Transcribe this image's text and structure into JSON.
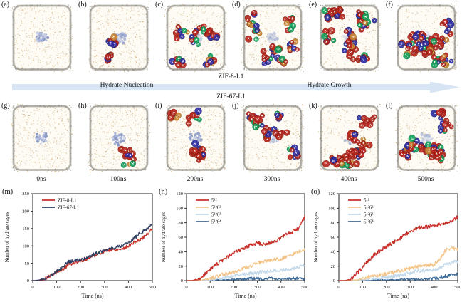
{
  "panels": [
    {
      "letter": "(a)",
      "cages": 0,
      "zif": 1.0
    },
    {
      "letter": "(b)",
      "cages": 16,
      "zif": 0.9
    },
    {
      "letter": "(c)",
      "cages": 48,
      "zif": 0.5
    },
    {
      "letter": "(d)",
      "cages": 58,
      "zif": 0.45
    },
    {
      "letter": "(e)",
      "cages": 78,
      "zif": 0.25
    },
    {
      "letter": "(f)",
      "cages": 88,
      "zif": 0.2
    },
    {
      "letter": "(g)",
      "cages": 0,
      "zif": 1.0
    },
    {
      "letter": "(h)",
      "cages": 18,
      "zif": 1.0
    },
    {
      "letter": "(i)",
      "cages": 36,
      "zif": 0.9
    },
    {
      "letter": "(j)",
      "cages": 46,
      "zif": 0.85
    },
    {
      "letter": "(k)",
      "cages": 62,
      "zif": 0.6
    },
    {
      "letter": "(l)",
      "cages": 78,
      "zif": 0.5
    }
  ],
  "labels": {
    "zif8_system": "ZIF-8-L1",
    "zif67_system": "ZIF-67-L1",
    "nucleation": "Hydrate Nucleation",
    "growth": "Hydrate Growth"
  },
  "time_labels": [
    "0ns",
    "100ns",
    "200ns",
    "300ns",
    "400ns",
    "500ns"
  ],
  "palette": {
    "box_fill": "#fdfbf4",
    "box_border": "#a6a49b",
    "speckle": "#c08a3e",
    "speckle_gray": "#a9a79f",
    "zif": "#98a6cb",
    "cage_red": "#b5281e",
    "cage_blue": "#3030a0",
    "cage_green": "#17a15d",
    "cage_orange": "#c98433",
    "arrow_band": "#d7e4f3"
  },
  "chart_data": [
    {
      "id": "m",
      "label": "(m)",
      "type": "line",
      "xlabel": "Time (ns)",
      "ylabel": "Number of hydrate cages",
      "xlim": [
        0,
        500
      ],
      "ylim": [
        0,
        250
      ],
      "xticks": [
        0,
        100,
        200,
        300,
        400,
        500
      ],
      "yticks": [
        0,
        50,
        100,
        150,
        200,
        250
      ],
      "legend_position": "top-left",
      "grid": false,
      "noise_amplitude": 5,
      "draw_order": "forward",
      "x": [
        0,
        25,
        50,
        75,
        100,
        125,
        150,
        175,
        200,
        225,
        250,
        275,
        300,
        325,
        350,
        375,
        400,
        425,
        450,
        475,
        500
      ],
      "series": [
        {
          "name": "ZIF-8-L1",
          "color": "#c8302a",
          "values": [
            0,
            1,
            5,
            14,
            25,
            33,
            45,
            52,
            57,
            62,
            72,
            78,
            85,
            88,
            90,
            92,
            100,
            110,
            118,
            132,
            148
          ]
        },
        {
          "name": "ZIF-67-L1",
          "color": "#2e3f63",
          "values": [
            0,
            1,
            6,
            16,
            27,
            40,
            54,
            57,
            60,
            66,
            74,
            82,
            88,
            92,
            96,
            102,
            108,
            122,
            138,
            148,
            162
          ]
        }
      ]
    },
    {
      "id": "n",
      "label": "(n)",
      "type": "line",
      "xlabel": "Time (ns)",
      "ylabel": "Number of hydrate cages",
      "xlim": [
        0,
        500
      ],
      "ylim": [
        0,
        120
      ],
      "xticks": [
        0,
        100,
        200,
        300,
        400,
        500
      ],
      "yticks": [
        0,
        20,
        40,
        60,
        80,
        100,
        120
      ],
      "legend_position": "top-left",
      "grid": false,
      "noise_amplitude": 2.6,
      "draw_order": "reverse",
      "x": [
        0,
        25,
        50,
        75,
        100,
        125,
        150,
        175,
        200,
        225,
        250,
        275,
        300,
        325,
        350,
        375,
        400,
        425,
        450,
        475,
        500
      ],
      "series": [
        {
          "name": "5¹²",
          "color": "#c8302a",
          "values": [
            0,
            0,
            2,
            8,
            15,
            22,
            28,
            33,
            38,
            42,
            46,
            50,
            52,
            50,
            52,
            55,
            58,
            65,
            68,
            72,
            88
          ]
        },
        {
          "name": "5¹²6²",
          "color": "#f3c488",
          "values": [
            0,
            0,
            0,
            1,
            3,
            5,
            8,
            10,
            12,
            15,
            18,
            20,
            24,
            26,
            28,
            29,
            30,
            33,
            36,
            40,
            43
          ]
        },
        {
          "name": "5¹²6³",
          "color": "#c3d9ea",
          "values": [
            0,
            0,
            0,
            0,
            1,
            2,
            3,
            5,
            6,
            8,
            9,
            10,
            11,
            12,
            13,
            14,
            15,
            16,
            17,
            19,
            21
          ]
        },
        {
          "name": "5¹²6⁴",
          "color": "#3c6a99",
          "values": [
            0,
            0,
            0,
            0,
            0,
            1,
            1,
            1,
            2,
            2,
            2,
            3,
            3,
            2,
            3,
            3,
            2,
            3,
            3,
            3,
            3
          ]
        }
      ]
    },
    {
      "id": "o",
      "label": "(o)",
      "type": "line",
      "xlabel": "Time (ns)",
      "ylabel": "Number of hydrate cages",
      "xlim": [
        0,
        500
      ],
      "ylim": [
        0,
        120
      ],
      "xticks": [
        0,
        100,
        200,
        300,
        400,
        500
      ],
      "yticks": [
        0,
        20,
        40,
        60,
        80,
        100,
        120
      ],
      "legend_position": "top-left",
      "grid": false,
      "noise_amplitude": 2.6,
      "draw_order": "reverse",
      "x": [
        0,
        25,
        50,
        75,
        100,
        125,
        150,
        175,
        200,
        225,
        250,
        275,
        300,
        325,
        350,
        375,
        400,
        425,
        450,
        475,
        500
      ],
      "series": [
        {
          "name": "5¹²",
          "color": "#c8302a",
          "values": [
            0,
            0,
            2,
            10,
            18,
            28,
            36,
            42,
            47,
            52,
            57,
            63,
            68,
            72,
            74,
            74,
            76,
            78,
            80,
            82,
            88
          ]
        },
        {
          "name": "5¹²6²",
          "color": "#f3c488",
          "values": [
            0,
            0,
            0,
            1,
            3,
            5,
            6,
            8,
            9,
            11,
            13,
            15,
            17,
            19,
            20,
            21,
            22,
            30,
            42,
            45,
            43
          ]
        },
        {
          "name": "5¹²6³",
          "color": "#c3d9ea",
          "values": [
            0,
            0,
            0,
            0,
            1,
            2,
            3,
            4,
            5,
            6,
            7,
            9,
            11,
            13,
            14,
            14,
            15,
            17,
            22,
            25,
            27
          ]
        },
        {
          "name": "5¹²6⁴",
          "color": "#3c6a99",
          "values": [
            0,
            0,
            0,
            0,
            0,
            0,
            1,
            1,
            1,
            1,
            1,
            2,
            2,
            2,
            2,
            2,
            3,
            4,
            6,
            8,
            9
          ]
        }
      ]
    }
  ]
}
